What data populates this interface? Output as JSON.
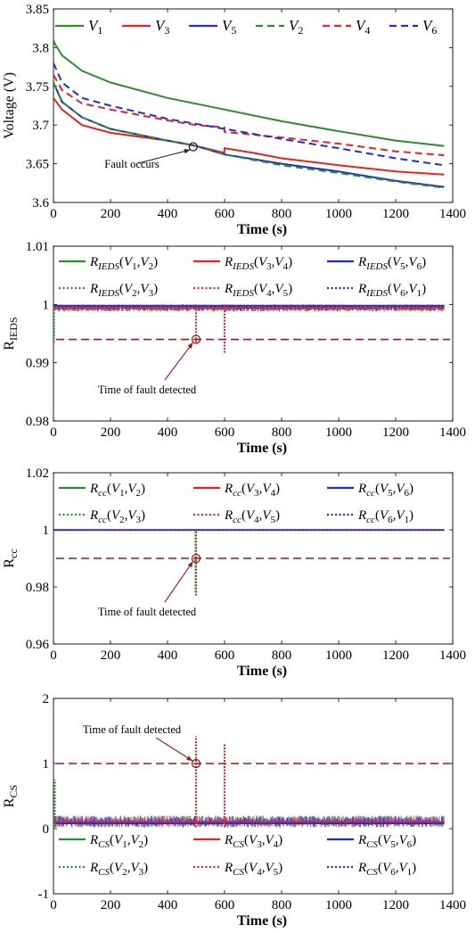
{
  "chart_data": [
    {
      "type": "line",
      "xlabel": "Time (s)",
      "ylabel": "Voltage (V)",
      "xlim": [
        0,
        1400
      ],
      "ylim": [
        3.6,
        3.85
      ],
      "xticks": [
        0,
        200,
        400,
        600,
        800,
        1000,
        1200,
        1400
      ],
      "yticks": [
        3.6,
        3.65,
        3.7,
        3.75,
        3.8,
        3.85
      ],
      "ytick_labels": [
        "3.6",
        "3.65",
        "3.7",
        "3.75",
        "3.8",
        "3.85"
      ],
      "grid": false,
      "legend_placement": "top",
      "annotation": {
        "text": "Fault occurs",
        "x": 490,
        "y": 3.672
      },
      "series": [
        {
          "name": "V1",
          "sub": "1",
          "color": "#2e8b2e",
          "dash": "solid",
          "x": [
            0,
            5,
            30,
            100,
            200,
            400,
            600,
            800,
            1000,
            1200,
            1370
          ],
          "y": [
            3.81,
            3.805,
            3.79,
            3.77,
            3.755,
            3.735,
            3.72,
            3.705,
            3.692,
            3.68,
            3.673
          ]
        },
        {
          "name": "V3",
          "sub": "3",
          "color": "#e8231f",
          "dash": "solid",
          "x": [
            0,
            30,
            100,
            200,
            400,
            500,
            599,
            600,
            700,
            800,
            1000,
            1200,
            1370
          ],
          "y": [
            3.735,
            3.72,
            3.7,
            3.69,
            3.68,
            3.673,
            3.664,
            3.67,
            3.664,
            3.657,
            3.648,
            3.64,
            3.636
          ]
        },
        {
          "name": "V5",
          "sub": "5",
          "color": "#1f2ad9",
          "dash": "solid",
          "x": [
            0,
            30,
            100,
            200,
            400,
            490,
            600,
            800,
            1000,
            1200,
            1370
          ],
          "y": [
            3.755,
            3.73,
            3.71,
            3.695,
            3.68,
            3.674,
            3.662,
            3.65,
            3.64,
            3.628,
            3.62
          ]
        },
        {
          "name": "V2",
          "sub": "2",
          "color": "#2e8b2e",
          "dash": "dashed",
          "x": [
            0,
            30,
            100,
            200,
            400,
            490,
            600,
            800,
            1000,
            1200,
            1370
          ],
          "y": [
            3.755,
            3.73,
            3.71,
            3.695,
            3.68,
            3.674,
            3.662,
            3.648,
            3.638,
            3.627,
            3.619
          ]
        },
        {
          "name": "V4",
          "sub": "4",
          "color": "#e8231f",
          "dash": "dashed",
          "x": [
            0,
            30,
            100,
            200,
            400,
            500,
            599,
            600,
            800,
            1000,
            1200,
            1370
          ],
          "y": [
            3.765,
            3.745,
            3.728,
            3.72,
            3.706,
            3.7,
            3.697,
            3.691,
            3.684,
            3.676,
            3.666,
            3.661
          ]
        },
        {
          "name": "V6",
          "sub": "6",
          "color": "#1f2ad9",
          "dash": "dashed",
          "x": [
            0,
            30,
            100,
            200,
            400,
            600,
            800,
            1000,
            1200,
            1370
          ],
          "y": [
            3.78,
            3.755,
            3.735,
            3.725,
            3.708,
            3.695,
            3.682,
            3.67,
            3.657,
            3.648
          ]
        }
      ]
    },
    {
      "type": "line",
      "xlabel": "Time (s)",
      "ylabel": "R",
      "ylabel_sub": "IEDS",
      "xlim": [
        0,
        1400
      ],
      "ylim": [
        0.98,
        1.01
      ],
      "xticks": [
        0,
        200,
        400,
        600,
        800,
        1000,
        1200,
        1400
      ],
      "yticks": [
        0.98,
        0.99,
        1,
        1.01
      ],
      "ytick_labels": [
        "0.98",
        "0.99",
        "1",
        "1.01"
      ],
      "grid": false,
      "legend_placement": "top",
      "threshold": 0.994,
      "annotation": {
        "text": "Time of fault detected",
        "x": 500,
        "y": 0.994
      },
      "band": {
        "x_start": 0,
        "x_end": 1370,
        "upper": 1.0,
        "lower": 0.9988
      },
      "spikes": [
        {
          "x": 500,
          "min": 0.9935,
          "color": "#e8231f"
        },
        {
          "x": 600,
          "min": 0.9917,
          "color": "#e8231f"
        },
        {
          "x": 2,
          "min": 0.9935,
          "color": "#2e8b2e"
        }
      ],
      "series": [
        {
          "name": "R_IEDS(V1,V2)",
          "color": "#2e8b2e",
          "dash": "solid",
          "x": [
            0,
            1370
          ],
          "y": [
            0.9995,
            0.9995
          ]
        },
        {
          "name": "R_IEDS(V3,V4)",
          "color": "#e8231f",
          "dash": "solid",
          "x": [
            0,
            1370
          ],
          "y": [
            0.9995,
            0.9995
          ]
        },
        {
          "name": "R_IEDS(V5,V6)",
          "color": "#1f2ad9",
          "dash": "solid",
          "x": [
            0,
            1370
          ],
          "y": [
            0.9998,
            0.9998
          ]
        },
        {
          "name": "R_IEDS(V2,V3)",
          "color": "#2e8b2e",
          "dash": "dotted",
          "x": [
            0,
            1370
          ],
          "y": [
            0.9993,
            0.9993
          ]
        },
        {
          "name": "R_IEDS(V4,V5)",
          "color": "#e8231f",
          "dash": "dotted",
          "x": [
            0,
            1370
          ],
          "y": [
            0.9993,
            0.9993
          ]
        },
        {
          "name": "R_IEDS(V6,V1)",
          "color": "#1f2ad9",
          "dash": "dotted",
          "x": [
            0,
            1370
          ],
          "y": [
            0.9997,
            0.9997
          ]
        }
      ]
    },
    {
      "type": "line",
      "xlabel": "Time (s)",
      "ylabel": "R",
      "ylabel_sub": "cc",
      "xlim": [
        0,
        1400
      ],
      "ylim": [
        0.96,
        1.02
      ],
      "xticks": [
        0,
        200,
        400,
        600,
        800,
        1000,
        1200,
        1400
      ],
      "yticks": [
        0.96,
        0.98,
        1,
        1.02
      ],
      "ytick_labels": [
        "0.96",
        "0.98",
        "1",
        "1.02"
      ],
      "grid": false,
      "legend_placement": "top",
      "threshold": 0.99,
      "annotation": {
        "text": "Time of fault detected",
        "x": 500,
        "y": 0.99
      },
      "band": {
        "x_start": 0,
        "x_end": 1370,
        "upper": 1.0,
        "lower": 0.9997
      },
      "spikes": [
        {
          "x": 500,
          "min": 0.977,
          "color": "#e8231f"
        },
        {
          "x": 498,
          "min": 0.978,
          "color": "#2e8b2e"
        }
      ],
      "series": [
        {
          "name": "R_cc(V1,V2)",
          "color": "#2e8b2e",
          "dash": "solid",
          "x": [
            0,
            1370
          ],
          "y": [
            0.9999,
            0.9999
          ]
        },
        {
          "name": "R_cc(V3,V4)",
          "color": "#e8231f",
          "dash": "solid",
          "x": [
            0,
            1370
          ],
          "y": [
            0.9999,
            0.9999
          ]
        },
        {
          "name": "R_cc(V5,V6)",
          "color": "#1f2ad9",
          "dash": "solid",
          "x": [
            0,
            1370
          ],
          "y": [
            1.0,
            1.0
          ]
        },
        {
          "name": "R_cc(V2,V3)",
          "color": "#2e8b2e",
          "dash": "dotted",
          "x": [
            0,
            1370
          ],
          "y": [
            0.9999,
            0.9999
          ]
        },
        {
          "name": "R_cc(V4,V5)",
          "color": "#e8231f",
          "dash": "dotted",
          "x": [
            0,
            1370
          ],
          "y": [
            0.9999,
            0.9999
          ]
        },
        {
          "name": "R_cc(V6,V1)",
          "color": "#1f2ad9",
          "dash": "dotted",
          "x": [
            0,
            1370
          ],
          "y": [
            1.0,
            1.0
          ]
        }
      ]
    },
    {
      "type": "line",
      "xlabel": "Time (s)",
      "ylabel": "R",
      "ylabel_sub": "CS",
      "xlim": [
        0,
        1400
      ],
      "ylim": [
        -1,
        2
      ],
      "xticks": [
        0,
        200,
        400,
        600,
        800,
        1000,
        1200,
        1400
      ],
      "yticks": [
        -1,
        0,
        1,
        2
      ],
      "ytick_labels": [
        "-1",
        "0",
        "1",
        "2"
      ],
      "grid": false,
      "legend_placement": "bottom",
      "threshold": 1,
      "annotation": {
        "text": "Time of fault detected",
        "x": 500,
        "y": 1
      },
      "band": {
        "x_start": 0,
        "x_end": 1370,
        "upper": 0.2,
        "lower": 0.02
      },
      "spikes": [
        {
          "x": 500,
          "max": 1.42,
          "color": "#e8231f"
        },
        {
          "x": 600,
          "max": 1.3,
          "color": "#e8231f"
        },
        {
          "x": 5,
          "max": 0.75,
          "color": "#2e8b2e"
        }
      ],
      "series": [
        {
          "name": "R_CS(V1,V2)",
          "color": "#2e8b2e",
          "dash": "solid",
          "x": [
            0,
            1370
          ],
          "y": [
            0.1,
            0.1
          ]
        },
        {
          "name": "R_CS(V3,V4)",
          "color": "#e8231f",
          "dash": "solid",
          "x": [
            0,
            1370
          ],
          "y": [
            0.1,
            0.1
          ]
        },
        {
          "name": "R_CS(V5,V6)",
          "color": "#1f2ad9",
          "dash": "solid",
          "x": [
            0,
            1370
          ],
          "y": [
            0.08,
            0.08
          ]
        },
        {
          "name": "R_CS(V2,V3)",
          "color": "#2e8b2e",
          "dash": "dotted",
          "x": [
            0,
            1370
          ],
          "y": [
            0.1,
            0.1
          ]
        },
        {
          "name": "R_CS(V4,V5)",
          "color": "#e8231f",
          "dash": "dotted",
          "x": [
            0,
            1370
          ],
          "y": [
            0.1,
            0.1
          ]
        },
        {
          "name": "R_CS(V6,V1)",
          "color": "#1f2ad9",
          "dash": "dotted",
          "x": [
            0,
            1370
          ],
          "y": [
            0.08,
            0.08
          ]
        }
      ]
    }
  ],
  "legend_labels": [
    [
      "V1",
      "V3",
      "V5",
      "V2",
      "V4",
      "V6"
    ],
    [
      {
        "sub": "IEDS",
        "args": [
          "1",
          "2"
        ]
      },
      {
        "sub": "IEDS",
        "args": [
          "3",
          "4"
        ]
      },
      {
        "sub": "IEDS",
        "args": [
          "5",
          "6"
        ]
      },
      {
        "sub": "IEDS",
        "args": [
          "2",
          "3"
        ]
      },
      {
        "sub": "IEDS",
        "args": [
          "4",
          "5"
        ]
      },
      {
        "sub": "IEDS",
        "args": [
          "6",
          "1"
        ]
      }
    ],
    [
      {
        "sub": "cc",
        "args": [
          "1",
          "2"
        ]
      },
      {
        "sub": "cc",
        "args": [
          "3",
          "4"
        ]
      },
      {
        "sub": "cc",
        "args": [
          "5",
          "6"
        ]
      },
      {
        "sub": "cc",
        "args": [
          "2",
          "3"
        ]
      },
      {
        "sub": "cc",
        "args": [
          "4",
          "5"
        ]
      },
      {
        "sub": "cc",
        "args": [
          "6",
          "1"
        ]
      }
    ],
    [
      {
        "sub": "CS",
        "args": [
          "1",
          "2"
        ]
      },
      {
        "sub": "CS",
        "args": [
          "3",
          "4"
        ]
      },
      {
        "sub": "CS",
        "args": [
          "5",
          "6"
        ]
      },
      {
        "sub": "CS",
        "args": [
          "2",
          "3"
        ]
      },
      {
        "sub": "CS",
        "args": [
          "4",
          "5"
        ]
      },
      {
        "sub": "CS",
        "args": [
          "6",
          "1"
        ]
      }
    ]
  ],
  "colors": {
    "green": "#2e8b2e",
    "red": "#e8231f",
    "blue": "#1f2ad9",
    "threshold": "#a01818"
  }
}
